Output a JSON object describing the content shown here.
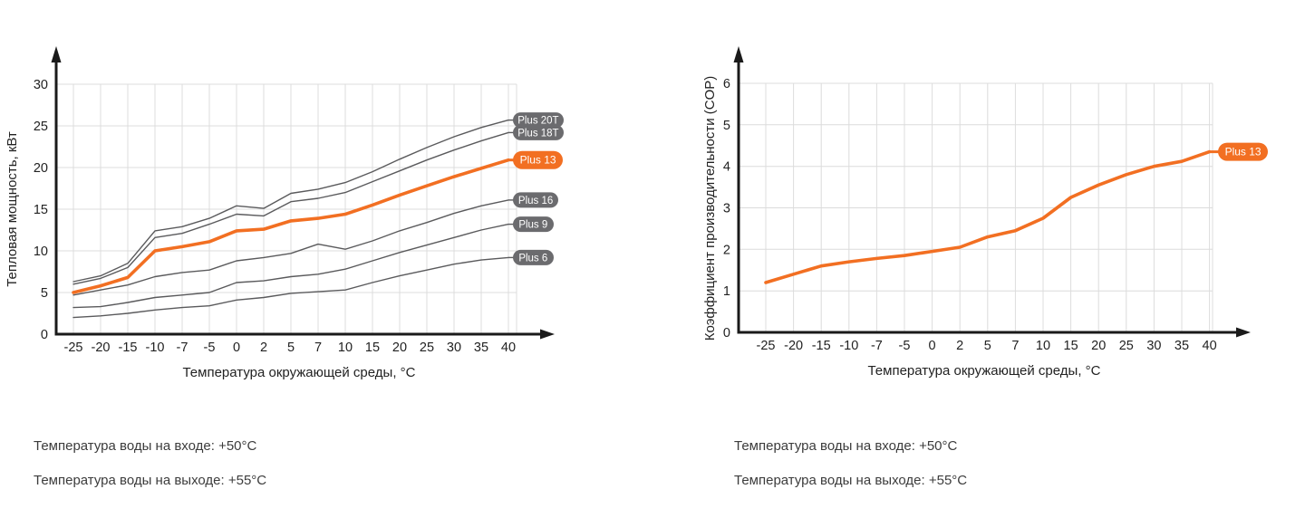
{
  "colors": {
    "accent_orange": "#F26F22",
    "series_gray": "#5A5A5C",
    "pill_gray": "#6B6B6E",
    "grid": "#DCDCDC",
    "axis": "#1A1A1A",
    "tick_text": "#222222",
    "pill_text": "#FFFFFF",
    "annotation_text": "#3C3C3C"
  },
  "annotations": {
    "left": {
      "inlet": "Температура воды на входе: +50°C",
      "outlet": "Температура воды на выходе: +55°C"
    },
    "right": {
      "inlet": "Температура воды на входе: +50°C",
      "outlet": "Температура воды на выходе: +55°C"
    }
  },
  "chart_data": [
    {
      "type": "line",
      "title": "",
      "xlabel": "Температура окружающей среды, °C",
      "ylabel": "Тепловая мощность, кВт",
      "categories": [
        "-25",
        "-20",
        "-15",
        "-10",
        "-7",
        "-5",
        "0",
        "2",
        "5",
        "7",
        "10",
        "15",
        "20",
        "25",
        "30",
        "35",
        "40"
      ],
      "ylim": [
        0,
        30
      ],
      "yticks": [
        0,
        5,
        10,
        15,
        20,
        25,
        30
      ],
      "grid": true,
      "legend_position": "right-end-pills",
      "series": [
        {
          "name": "Plus 20T",
          "highlight": false,
          "values": [
            6.3,
            7.0,
            8.5,
            12.4,
            12.9,
            13.9,
            15.4,
            15.1,
            16.9,
            17.4,
            18.2,
            19.5,
            21.0,
            22.4,
            23.7,
            24.8,
            25.7
          ]
        },
        {
          "name": "Plus 18T",
          "highlight": false,
          "values": [
            6.0,
            6.7,
            8.0,
            11.6,
            12.1,
            13.2,
            14.4,
            14.2,
            15.9,
            16.3,
            17.0,
            18.3,
            19.6,
            20.9,
            22.1,
            23.2,
            24.2
          ]
        },
        {
          "name": "Plus 13",
          "highlight": true,
          "values": [
            5.0,
            5.8,
            6.8,
            10.0,
            10.5,
            11.1,
            12.4,
            12.6,
            13.6,
            13.9,
            14.4,
            15.5,
            16.7,
            17.8,
            18.9,
            19.9,
            20.9
          ]
        },
        {
          "name": "Plus 16",
          "highlight": false,
          "values": [
            4.7,
            5.3,
            5.9,
            6.9,
            7.4,
            7.7,
            8.8,
            9.2,
            9.7,
            10.8,
            10.2,
            11.2,
            12.4,
            13.4,
            14.5,
            15.4,
            16.1
          ]
        },
        {
          "name": "Plus 9",
          "highlight": false,
          "values": [
            3.2,
            3.3,
            3.8,
            4.4,
            4.7,
            5.0,
            6.2,
            6.4,
            6.9,
            7.2,
            7.8,
            8.8,
            9.8,
            10.7,
            11.6,
            12.5,
            13.2
          ]
        },
        {
          "name": "Plus 6",
          "highlight": false,
          "values": [
            2.0,
            2.2,
            2.5,
            2.9,
            3.2,
            3.4,
            4.1,
            4.4,
            4.9,
            5.1,
            5.3,
            6.2,
            7.0,
            7.7,
            8.4,
            8.9,
            9.2
          ]
        }
      ]
    },
    {
      "type": "line",
      "title": "",
      "xlabel": "Температура окружающей среды, °C",
      "ylabel": "Коэффициент производительности (COP)",
      "categories": [
        "-25",
        "-20",
        "-15",
        "-10",
        "-7",
        "-5",
        "0",
        "2",
        "5",
        "7",
        "10",
        "15",
        "20",
        "25",
        "30",
        "35",
        "40"
      ],
      "ylim": [
        0,
        6
      ],
      "yticks": [
        0,
        1,
        2,
        3,
        4,
        5,
        6
      ],
      "grid": true,
      "legend_position": "right-end-pills",
      "series": [
        {
          "name": "Plus 13",
          "highlight": true,
          "values": [
            1.2,
            1.4,
            1.6,
            1.7,
            1.78,
            1.85,
            1.95,
            2.05,
            2.3,
            2.45,
            2.75,
            3.25,
            3.55,
            3.8,
            4.0,
            4.12,
            4.35
          ]
        }
      ]
    }
  ]
}
